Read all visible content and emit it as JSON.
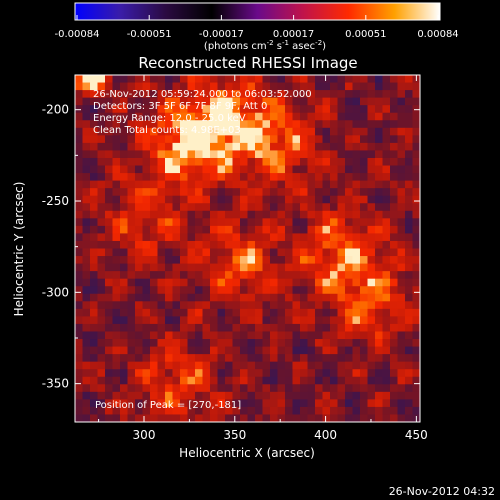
{
  "colorbar": {
    "ticks": [
      "-0.00084",
      "-0.00051",
      "-0.00017",
      "0.00017",
      "0.00051",
      "0.00084"
    ],
    "unit_main": "(photons cm",
    "unit_sup1": "-2",
    "unit_mid": " s",
    "unit_sup2": "-1",
    "unit_end": " asec",
    "unit_sup3": "-2",
    "unit_close": ")",
    "stops": [
      "#0000ff",
      "#3a1ca8",
      "#2a0a40",
      "#000000",
      "#6a0a8a",
      "#c0134a",
      "#ff2a00",
      "#ffa000",
      "#ffffff"
    ]
  },
  "chart_data": {
    "type": "heatmap",
    "title": "Reconstructed RHESSI Image",
    "xlabel": "Heliocentric X (arcsec)",
    "ylabel": "Heliocentric Y (arcsec)",
    "xlim": [
      262,
      452
    ],
    "ylim": [
      -371,
      -181
    ],
    "x_ticks": [
      "300",
      "350",
      "400",
      "450"
    ],
    "y_ticks": [
      "-200",
      "-250",
      "-300",
      "-350"
    ],
    "value_range": [
      -0.00084,
      0.00084
    ],
    "annotations": [
      "26-Nov-2012 05:59:24.000 to 06:03:52.000",
      "Detectors: 3F 5F 6F 7F 8F 9F, Att 0",
      "Energy Range: 12.0 - 25.0 keV",
      "Clean     Total counts: 4.98E+03"
    ],
    "peak_label": "Position of Peak = [270,-181]",
    "peak": [
      270,
      -181
    ],
    "bright_regions": [
      {
        "x": 322,
        "y": -220,
        "level": 0.55
      },
      {
        "x": 345,
        "y": -205,
        "level": 0.5
      },
      {
        "x": 372,
        "y": -218,
        "level": 0.45
      },
      {
        "x": 408,
        "y": -278,
        "level": 0.45
      },
      {
        "x": 425,
        "y": -305,
        "level": 0.4
      },
      {
        "x": 352,
        "y": -285,
        "level": 0.4
      },
      {
        "x": 318,
        "y": -350,
        "level": 0.35
      },
      {
        "x": 300,
        "y": -260,
        "level": 0.3
      }
    ]
  },
  "footer": {
    "date": "26-Nov-2012 04:32"
  }
}
